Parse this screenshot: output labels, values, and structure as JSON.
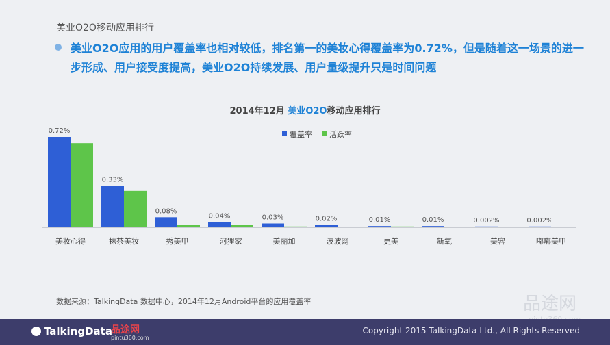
{
  "header": {
    "title": "美业O2O移动应用排行",
    "headline": "美业O2O应用的用户覆盖率也相对较低，排名第一的美妆心得覆盖率为0.72%，但是随着这一场景的进一步形成、用户接受度提高，美业O2O持续发展、用户量级提升只是时间问题"
  },
  "chart_title": {
    "prefix": "2014年12月 ",
    "highlight": "美业O2O",
    "suffix": "移动应用排行"
  },
  "chart_data": {
    "type": "bar",
    "categories": [
      "美妆心得",
      "抹茶美妆",
      "秀美甲",
      "河狸家",
      "美丽加",
      "波波网",
      "更美",
      "新氧",
      "美容",
      "嘟嘟美甲"
    ],
    "series": [
      {
        "name": "覆盖率",
        "color": "#2e5fd6",
        "values": [
          0.72,
          0.33,
          0.08,
          0.04,
          0.03,
          0.02,
          0.01,
          0.01,
          0.002,
          0.002
        ]
      },
      {
        "name": "活跃率",
        "color": "#5ec54a",
        "values": [
          0.67,
          0.29,
          0.02,
          0.02,
          0.005,
          0,
          0.003,
          0,
          0,
          0
        ]
      }
    ],
    "data_labels": [
      "0.72%",
      "0.33%",
      "0.08%",
      "0.04%",
      "0.03%",
      "0.02%",
      "0.01%",
      "0.01%",
      "0.002%",
      "0.002%"
    ],
    "ylim": [
      0,
      0.72
    ],
    "legend_position": "top-center",
    "grid": false
  },
  "footer": {
    "source_note": "数据来源：TalkingData 数据中心，2014年12月Android平台的应用覆盖率",
    "copyright": "Copyright 2015 TalkingData Ltd., All Rights Reserved",
    "logo_talkingdata": "TalkingData",
    "logo_pintu": "品途网",
    "logo_pintu_url": "pintu360.com",
    "watermark": "品途网",
    "watermark_url": "pintu360.com"
  }
}
